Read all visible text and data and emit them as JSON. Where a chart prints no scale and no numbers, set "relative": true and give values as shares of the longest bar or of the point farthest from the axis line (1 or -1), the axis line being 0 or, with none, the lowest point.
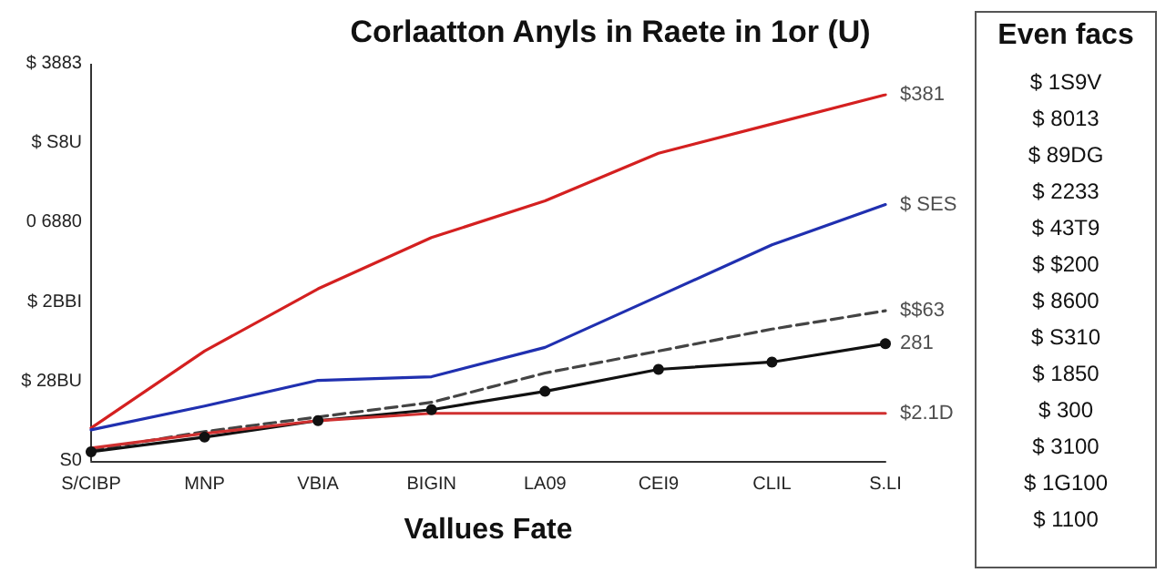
{
  "chart_data": [
    {
      "type": "line",
      "title": "Corlaatton Anyls in Raete in 1or (U)",
      "xlabel": "Vallues Fate",
      "relative": true,
      "categories": [
        "S/CIBP",
        "MNP",
        "VBIA",
        "BIGIN",
        "LA09",
        "CEI9",
        "CLIL",
        "S.LI"
      ],
      "marker": "none",
      "grid": false,
      "series": [
        {
          "color": "#d42020",
          "values": [
            0.09,
            0.3,
            0.47,
            0.61,
            0.71,
            0.84,
            0.92,
            1
          ]
        },
        {
          "color": "#2030b0",
          "values": [
            0.085,
            0.15,
            0.22,
            0.23,
            0.31,
            0.45,
            0.59,
            0.7
          ]
        },
        {
          "color": "#444444",
          "line_style": "dashed",
          "values": [
            0.03,
            0.08,
            0.12,
            0.16,
            0.24,
            0.3,
            0.36,
            0.41
          ]
        },
        {
          "color": "#111111",
          "marker": "circle",
          "values": [
            0.025,
            0.065,
            0.11,
            0.14,
            0.19,
            0.25,
            0.27,
            0.32
          ]
        },
        {
          "color": "#d03030",
          "values": [
            0.035,
            0.075,
            0.11,
            0.13,
            0.13,
            0.13,
            0.13,
            0.13
          ]
        }
      ],
      "annotations": [
        {
          "text": "$381",
          "x": "S.LI",
          "y": 1
        },
        {
          "text": "$ SES",
          "x": "S.LI",
          "y": 0.7
        },
        {
          "text": "$$63",
          "x": "S.LI",
          "y": 0.41
        },
        {
          "text": "281",
          "x": "S.LI",
          "y": 0.32
        },
        {
          "text": "$2.1D",
          "x": "S.LI",
          "y": 0.13
        },
        "$ 3883",
        "$ S8U",
        "0 6880",
        "$ 2BBI",
        "$ 28BU",
        "S0"
      ]
    },
    {
      "type": "other",
      "title": "Even facs",
      "annotations": [
        "$ 1S9V",
        "$ 8013",
        "$ 89DG",
        "$ 2233",
        "$ 43T9",
        "$ $200",
        "$ 8600",
        "$ S310",
        "$ 1850",
        "$ 300",
        "$ 3100",
        "$ 1G100",
        "$ 1100"
      ]
    }
  ]
}
